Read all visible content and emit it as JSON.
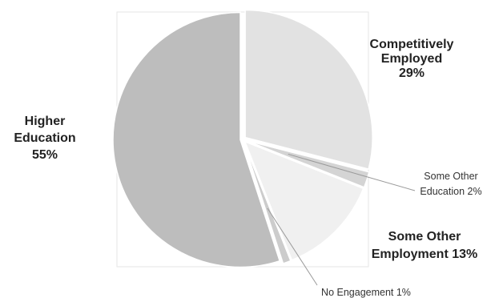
{
  "chart_data": {
    "type": "pie",
    "title": "",
    "start_angle_deg": -90,
    "slices": [
      {
        "name": "Competitively Employed",
        "value": 29,
        "color": "#e2e2e2",
        "label_lines": [
          "Competitively",
          "Employed",
          "29%"
        ],
        "label_style": "bold",
        "explode": 4
      },
      {
        "name": "Some Other Education",
        "value": 2,
        "color": "#d4d4d4",
        "label_lines": [
          "Some Other",
          "Education 2%"
        ],
        "label_style": "small",
        "explode": 4
      },
      {
        "name": "Some Other Employment",
        "value": 13,
        "color": "#f0f0f0",
        "label_lines": [
          "Some Other",
          "Employment 13%"
        ],
        "label_style": "bold",
        "explode": 4
      },
      {
        "name": "No Engagement",
        "value": 1,
        "color": "#cccccc",
        "label_lines": [
          "No Engagement 1%"
        ],
        "label_style": "small",
        "explode": 4
      },
      {
        "name": "Higher Education",
        "value": 55,
        "color": "#bdbdbd",
        "label_lines": [
          "Higher",
          "Education",
          "55%"
        ],
        "label_style": "bold",
        "explode": 3
      }
    ]
  }
}
